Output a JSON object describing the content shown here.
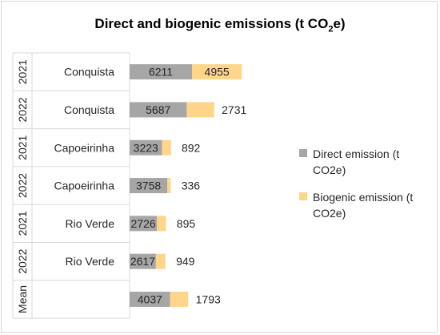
{
  "chart_data": {
    "type": "bar",
    "orientation": "horizontal",
    "stacked": true,
    "title": "Direct and biogenic emissions (t CO2e)",
    "title_parts": {
      "main": "Direct and biogenic emissions (t CO",
      "sub": "2",
      "tail": "e)"
    },
    "categories": [
      {
        "year": "2021",
        "site": "Conquista"
      },
      {
        "year": "2022",
        "site": "Conquista"
      },
      {
        "year": "2021",
        "site": "Capoeirinha"
      },
      {
        "year": "2022",
        "site": "Capoeirinha"
      },
      {
        "year": "2021",
        "site": "Rio Verde"
      },
      {
        "year": "2022",
        "site": "Rio Verde"
      },
      {
        "year": "Mean",
        "site": ""
      }
    ],
    "series": [
      {
        "name": "Direct emission (t CO2e)",
        "color": "#a6a6a6",
        "values": [
          6211,
          5687,
          3223,
          3758,
          2726,
          2617,
          4037
        ]
      },
      {
        "name": "Biogenic emission (t CO2e)",
        "color": "#ffd58a",
        "values": [
          4955,
          2731,
          892,
          336,
          895,
          949,
          1793
        ]
      }
    ],
    "legend_position": "right",
    "grid": false
  }
}
